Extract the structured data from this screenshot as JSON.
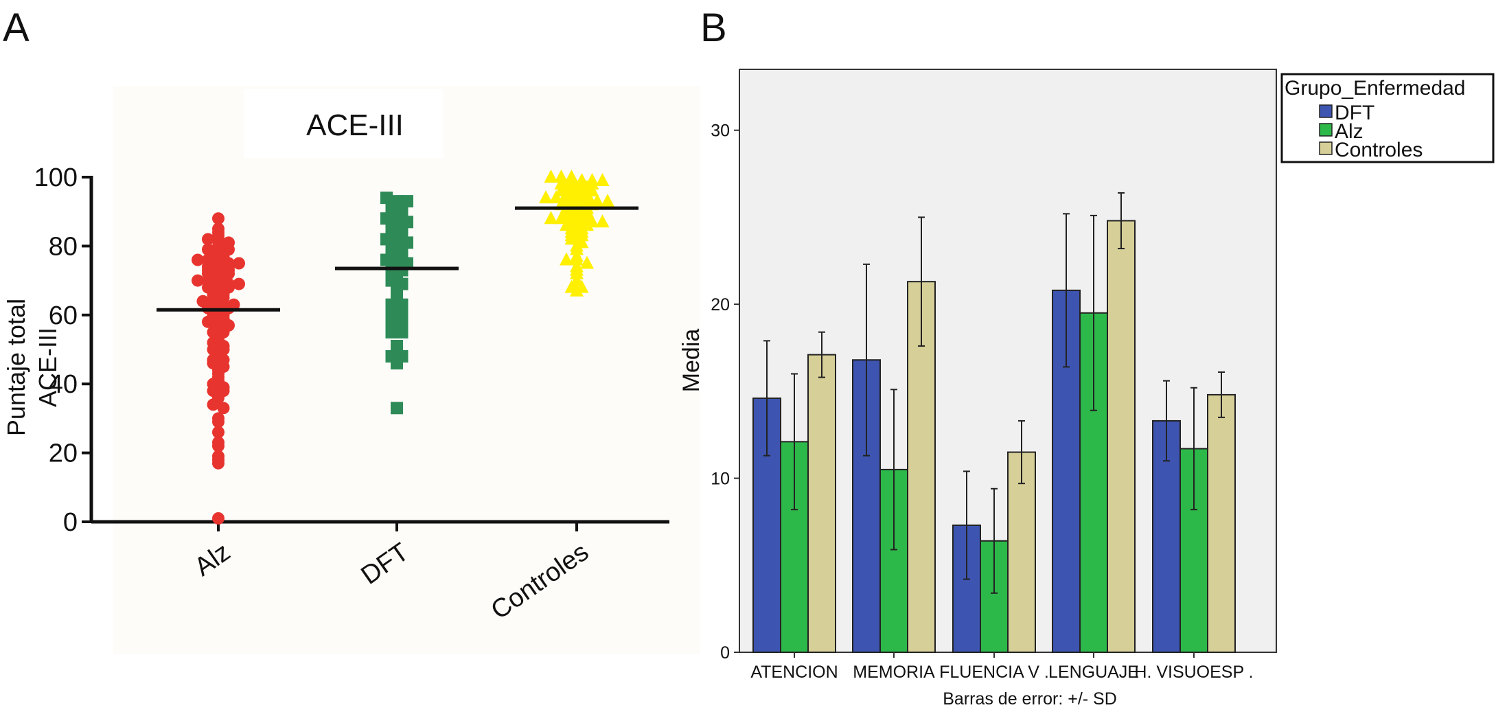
{
  "panel_labels": {
    "a": "A",
    "b": "B"
  },
  "colors": {
    "alz_red": "#e8342f",
    "dft_green": "#2e8b57",
    "controles_yellow": "#ffef00",
    "bar_dft": "#3d55b0",
    "bar_alz": "#2db84a",
    "bar_controles": "#d6cf98",
    "plot_bg_b": "#f0f0f0",
    "plot_bg_a": "#fdfcf8"
  },
  "chart_data": [
    {
      "type": "scatter",
      "title": "ACE-III",
      "ylabel": [
        "Puntaje total",
        "ACE-III"
      ],
      "xlabel": "",
      "ylim": [
        0,
        100
      ],
      "yticks": [
        "0",
        "20",
        "40",
        "60",
        "80",
        "100"
      ],
      "categories": [
        "Alz",
        "DFT",
        "Controles"
      ],
      "markers": [
        "circle",
        "square",
        "triangle"
      ],
      "means": [
        61.5,
        73.5,
        91
      ],
      "series": [
        {
          "category": "Alz",
          "values": [
            88,
            85,
            84,
            83,
            82,
            82,
            81,
            80,
            79,
            79,
            79,
            78,
            78,
            77,
            77,
            76,
            76,
            76,
            75,
            75,
            74,
            74,
            74,
            73,
            73,
            73,
            72,
            72,
            72,
            71,
            71,
            70,
            70,
            70,
            69,
            69,
            68,
            68,
            68,
            67,
            67,
            66,
            66,
            65,
            65,
            64,
            64,
            63,
            63,
            62,
            62,
            62,
            61,
            61,
            60,
            60,
            59,
            59,
            58,
            57,
            57,
            56,
            55,
            55,
            54,
            53,
            52,
            51,
            50,
            50,
            49,
            48,
            47,
            47,
            46,
            45,
            44,
            43,
            42,
            41,
            40,
            39,
            38,
            38,
            37,
            36,
            34,
            33,
            30,
            29,
            26,
            23,
            22,
            19,
            18,
            17,
            1
          ]
        },
        {
          "category": "DFT",
          "values": [
            94,
            93,
            93,
            91,
            91,
            90,
            90,
            89,
            88,
            88,
            87,
            86,
            86,
            85,
            85,
            84,
            84,
            83,
            82,
            82,
            81,
            80,
            80,
            79,
            79,
            78,
            78,
            77,
            76,
            76,
            75,
            74,
            73,
            73,
            72,
            71,
            70,
            69,
            67,
            66,
            65,
            63,
            63,
            62,
            60,
            60,
            58,
            57,
            56,
            55,
            55,
            51,
            48,
            48,
            47,
            46,
            33
          ]
        },
        {
          "category": "Controles",
          "values": [
            100,
            100,
            100,
            99,
            99,
            99,
            98,
            98,
            98,
            98,
            97,
            97,
            97,
            96,
            96,
            96,
            96,
            95,
            95,
            95,
            94,
            94,
            94,
            94,
            93,
            93,
            93,
            92,
            92,
            92,
            92,
            91,
            91,
            91,
            90,
            90,
            90,
            89,
            89,
            89,
            88,
            88,
            88,
            87,
            87,
            87,
            86,
            86,
            86,
            85,
            85,
            84,
            84,
            83,
            83,
            82,
            81,
            80,
            79,
            77,
            76,
            76,
            75,
            74,
            73,
            72,
            70,
            68,
            68,
            67
          ]
        }
      ]
    },
    {
      "type": "bar",
      "title": "",
      "xlabel": "Barras de error: +/- SD",
      "ylabel": "Media",
      "ylim": [
        0,
        33.5
      ],
      "yticks": [
        "0",
        "10",
        "20",
        "30"
      ],
      "grid": false,
      "legend": {
        "title": "Grupo_Enfermedad",
        "placement": "top-right (outside plot)"
      },
      "categories": [
        "ATENCION",
        "MEMORIA",
        "FLUENCIA V .",
        "LENGUAJE",
        "H. VISUOESP ."
      ],
      "series": [
        {
          "name": "DFT",
          "values": [
            14.6,
            16.8,
            7.3,
            20.8,
            13.3
          ],
          "error": [
            3.3,
            5.5,
            3.1,
            4.4,
            2.3
          ]
        },
        {
          "name": "Alz",
          "values": [
            12.1,
            10.5,
            6.4,
            19.5,
            11.7
          ],
          "error": [
            3.9,
            4.6,
            3.0,
            5.6,
            3.5
          ]
        },
        {
          "name": "Controles",
          "values": [
            17.1,
            21.3,
            11.5,
            24.8,
            14.8
          ],
          "error": [
            1.3,
            3.7,
            1.8,
            1.6,
            1.3
          ]
        }
      ]
    }
  ]
}
